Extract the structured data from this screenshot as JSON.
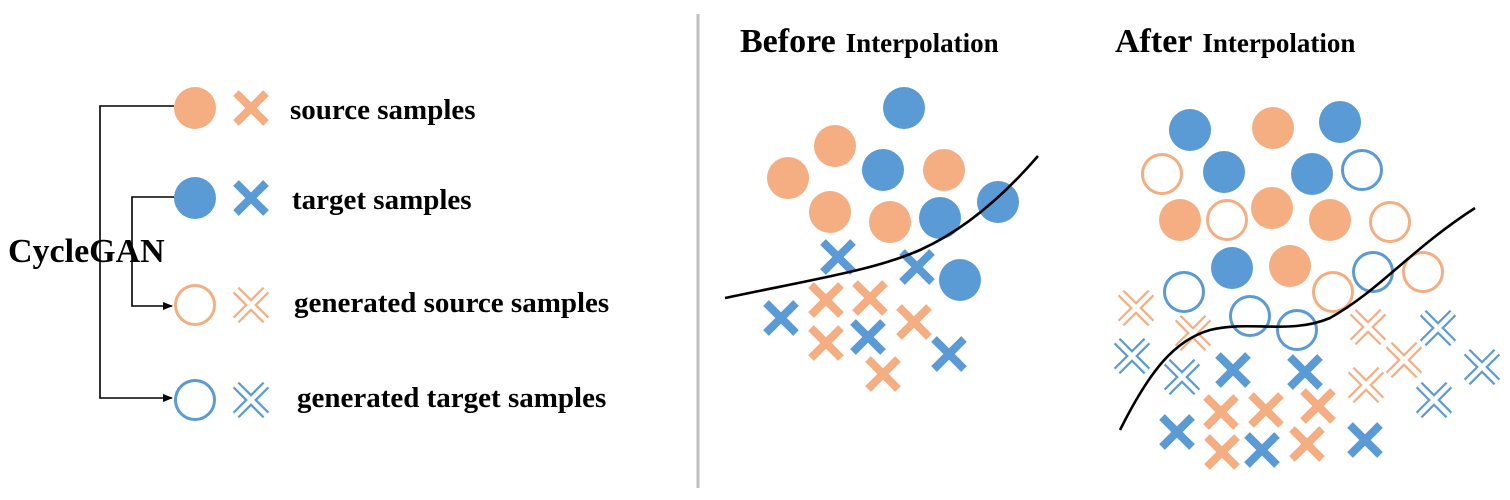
{
  "colors": {
    "source": "#F4AE82",
    "target": "#5B9BD5",
    "line": "#000000",
    "divider": "#BFBFBF"
  },
  "legend": {
    "root_label": "CycleGAN",
    "items": [
      {
        "label": "source samples",
        "kind": "source",
        "style": "filled"
      },
      {
        "label": "target samples",
        "kind": "target",
        "style": "filled"
      },
      {
        "label": "generated source samples",
        "kind": "source",
        "style": "hollow"
      },
      {
        "label": "generated target samples",
        "kind": "target",
        "style": "hollow"
      }
    ]
  },
  "panels": {
    "before": {
      "title_main": "Before",
      "title_sub": "Interpolation"
    },
    "after": {
      "title_main": "After",
      "title_sub": "Interpolation"
    }
  },
  "icons": {
    "circle": "circle-icon",
    "cross": "cross-icon",
    "hollow_cross": "hollow-cross-icon",
    "arrow": "arrow-icon"
  }
}
